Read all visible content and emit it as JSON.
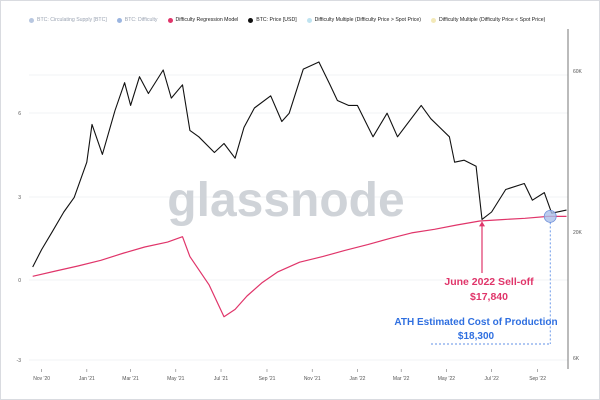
{
  "legend": {
    "items": [
      {
        "label": "BTC: Circulating Supply [BTC]",
        "color": "#b8c7e0",
        "faded": true
      },
      {
        "label": "BTC: Difficulty",
        "color": "#9bb5e0",
        "faded": true
      },
      {
        "label": "Difficulty Regression Model",
        "color": "#e0356a",
        "faded": false
      },
      {
        "label": "BTC: Price [USD]",
        "color": "#111111",
        "faded": false
      },
      {
        "label": "Difficulty Multiple (Difficulty Price > Spot Price)",
        "color": "#bfe3f0",
        "faded": false
      },
      {
        "label": "Difficulty Multiple (Difficulty Price < Spot Price)",
        "color": "#f3e9b8",
        "faded": false
      }
    ]
  },
  "watermark": "glassnode",
  "annotations": {
    "selloff": {
      "line1": "June 2022 Sell-off",
      "line2": "$17,840",
      "color": "#e0356a"
    },
    "production": {
      "line1": "ATH Estimated Cost of Production",
      "line2": "$18,300",
      "color": "#2f6fe0"
    }
  },
  "chart_data": {
    "type": "line",
    "x_tick_labels": [
      "Nov '20",
      "Jan '21",
      "Mar '21",
      "May '21",
      "Jul '21",
      "Sep '21",
      "Nov '21",
      "Jan '22",
      "Mar '22",
      "May '22",
      "Jul '22",
      "Sep '22"
    ],
    "left_axis_labels": [
      "6",
      "3",
      "0",
      "-3"
    ],
    "right_axis_labels": [
      "60K",
      "20K",
      "6K"
    ],
    "series": [
      {
        "name": "BTC: Price [USD]",
        "color": "#111111",
        "x": [
          "2020-10-20",
          "2020-11-01",
          "2020-11-15",
          "2020-12-01",
          "2020-12-15",
          "2021-01-01",
          "2021-01-08",
          "2021-01-22",
          "2021-02-08",
          "2021-02-21",
          "2021-03-01",
          "2021-03-13",
          "2021-03-25",
          "2021-04-14",
          "2021-04-25",
          "2021-05-10",
          "2021-05-20",
          "2021-06-01",
          "2021-06-22",
          "2021-07-05",
          "2021-07-20",
          "2021-08-01",
          "2021-08-15",
          "2021-09-06",
          "2021-09-21",
          "2021-10-01",
          "2021-10-20",
          "2021-11-10",
          "2021-11-25",
          "2021-12-05",
          "2021-12-20",
          "2022-01-01",
          "2022-01-22",
          "2022-02-10",
          "2022-02-24",
          "2022-03-28",
          "2022-04-10",
          "2022-05-05",
          "2022-05-12",
          "2022-05-25",
          "2022-06-10",
          "2022-06-18",
          "2022-07-01",
          "2022-07-20",
          "2022-08-14",
          "2022-08-25",
          "2022-09-10",
          "2022-09-20",
          "2022-10-10"
        ],
        "y": [
          11900,
          13800,
          16000,
          19000,
          21500,
          29000,
          40000,
          31000,
          45000,
          57000,
          47000,
          60000,
          52000,
          63500,
          50000,
          56000,
          38000,
          36000,
          31500,
          34000,
          30000,
          39000,
          46000,
          51000,
          41000,
          44000,
          64000,
          68000,
          56000,
          49000,
          47000,
          47000,
          36000,
          44000,
          36000,
          47000,
          42000,
          36000,
          29000,
          29500,
          28000,
          17840,
          19000,
          23000,
          24200,
          21000,
          22400,
          18800,
          19300
        ]
      },
      {
        "name": "Difficulty Regression Model",
        "color": "#e0356a",
        "x": [
          "2020-10-20",
          "2020-11-20",
          "2020-12-20",
          "2021-01-20",
          "2021-02-20",
          "2021-03-20",
          "2021-04-20",
          "2021-05-10",
          "2021-05-20",
          "2021-06-15",
          "2021-07-05",
          "2021-07-20",
          "2021-08-05",
          "2021-08-25",
          "2021-09-15",
          "2021-10-15",
          "2021-11-15",
          "2021-12-15",
          "2022-01-15",
          "2022-02-15",
          "2022-03-15",
          "2022-04-15",
          "2022-05-15",
          "2022-06-15",
          "2022-07-15",
          "2022-08-15",
          "2022-09-15",
          "2022-10-10"
        ],
        "y": [
          11000,
          11500,
          12000,
          12600,
          13400,
          14100,
          14700,
          15400,
          13000,
          10200,
          7800,
          8300,
          9300,
          10400,
          11400,
          12400,
          13000,
          13700,
          14400,
          15200,
          15900,
          16400,
          17000,
          17600,
          17800,
          18000,
          18300,
          18300
        ]
      }
    ],
    "y_scale": "log",
    "ylim_price": [
      5000,
      90000
    ],
    "grid": true,
    "legend_position": "top"
  }
}
